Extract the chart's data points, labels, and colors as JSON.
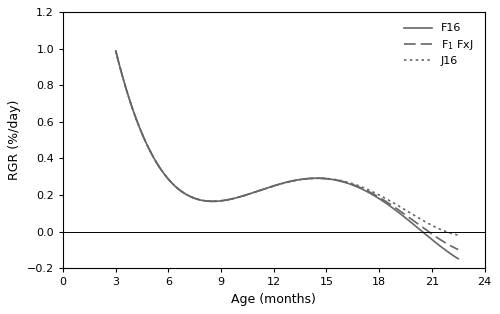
{
  "xlabel": "Age (months)",
  "ylabel": "RGR (%/day)",
  "xlim": [
    0,
    24
  ],
  "ylim": [
    -0.2,
    1.2
  ],
  "xticks": [
    0,
    3,
    6,
    9,
    12,
    15,
    18,
    21,
    24
  ],
  "yticks": [
    -0.2,
    0.0,
    0.2,
    0.4,
    0.6,
    0.8,
    1.0,
    1.2
  ],
  "background_color": "#ffffff",
  "line_color": "#666666",
  "legend_labels": [
    "F16",
    "F₁ FxJ",
    "J16"
  ],
  "t_key": [
    3,
    3.5,
    4,
    4.5,
    5,
    5.5,
    6,
    6.5,
    7,
    7.5,
    8,
    8.5,
    9,
    9.5,
    10,
    10.5,
    11,
    11.5,
    12,
    12.5,
    13,
    13.5,
    14,
    14.5,
    15,
    15.5,
    16,
    16.5,
    17,
    17.5,
    18,
    18.5,
    19,
    19.5,
    20,
    20.5,
    21,
    21.5,
    22,
    22.5
  ],
  "rgr_F16": [
    1.1,
    0.82,
    0.62,
    0.46,
    0.36,
    0.295,
    0.258,
    0.237,
    0.225,
    0.218,
    0.212,
    0.208,
    0.207,
    0.208,
    0.213,
    0.22,
    0.228,
    0.236,
    0.243,
    0.25,
    0.256,
    0.261,
    0.264,
    0.265,
    0.264,
    0.261,
    0.255,
    0.245,
    0.23,
    0.212,
    0.19,
    0.163,
    0.132,
    0.097,
    0.058,
    0.016,
    -0.03,
    -0.078,
    -0.13,
    -0.185
  ],
  "rgr_F1": [
    1.1,
    0.82,
    0.62,
    0.46,
    0.36,
    0.295,
    0.258,
    0.237,
    0.225,
    0.218,
    0.212,
    0.208,
    0.207,
    0.208,
    0.213,
    0.22,
    0.228,
    0.236,
    0.243,
    0.25,
    0.256,
    0.261,
    0.264,
    0.265,
    0.264,
    0.261,
    0.256,
    0.247,
    0.234,
    0.218,
    0.198,
    0.173,
    0.145,
    0.113,
    0.078,
    0.04,
    0.0,
    -0.042,
    -0.087,
    -0.135
  ],
  "rgr_J16": [
    1.1,
    0.82,
    0.62,
    0.46,
    0.36,
    0.295,
    0.258,
    0.237,
    0.225,
    0.218,
    0.212,
    0.208,
    0.207,
    0.208,
    0.213,
    0.22,
    0.228,
    0.236,
    0.243,
    0.25,
    0.256,
    0.261,
    0.264,
    0.265,
    0.264,
    0.262,
    0.257,
    0.25,
    0.24,
    0.226,
    0.21,
    0.19,
    0.167,
    0.141,
    0.112,
    0.081,
    0.048,
    0.015,
    -0.02,
    -0.057
  ]
}
